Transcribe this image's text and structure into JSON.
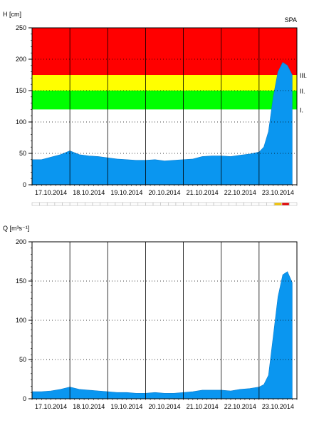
{
  "chart_data": [
    {
      "type": "area",
      "ylabel": "H [cm]",
      "station": "SPA",
      "ylim": [
        0,
        250
      ],
      "yticks": [
        0,
        50,
        100,
        150,
        200,
        250
      ],
      "grid": true,
      "x_start": "17.10.2014 00:00",
      "x_end": "24.10.2014 00:00",
      "x_tick_labels": [
        "17.10.2014",
        "18.10.2014",
        "19.10.2014",
        "20.10.2014",
        "21.10.2014",
        "22.10.2014",
        "23.10.2014"
      ],
      "fill_color": "#0a96f0",
      "bands": [
        {
          "label": "I.",
          "from": 120,
          "to": 150,
          "color": "#00ff00"
        },
        {
          "label": "II.",
          "from": 150,
          "to": 175,
          "color": "#ffff00"
        },
        {
          "label": "III.",
          "from": 175,
          "to": 250,
          "color": "#ff0000"
        }
      ],
      "status_strip": {
        "segments": 35,
        "markers": [
          {
            "segment": 32,
            "color": "#f0c000"
          },
          {
            "segment": 33,
            "color": "#e00000"
          }
        ]
      },
      "series": [
        {
          "x": [
            "17.10.2014 00:00",
            "17.10.2014 06:00",
            "17.10.2014 12:00",
            "17.10.2014 18:00",
            "18.10.2014 00:00",
            "18.10.2014 06:00",
            "18.10.2014 12:00",
            "18.10.2014 18:00",
            "19.10.2014 00:00",
            "19.10.2014 06:00",
            "19.10.2014 12:00",
            "19.10.2014 18:00",
            "20.10.2014 00:00",
            "20.10.2014 06:00",
            "20.10.2014 12:00",
            "20.10.2014 18:00",
            "21.10.2014 00:00",
            "21.10.2014 06:00",
            "21.10.2014 12:00",
            "21.10.2014 18:00",
            "22.10.2014 00:00",
            "22.10.2014 06:00",
            "22.10.2014 12:00",
            "22.10.2014 18:00",
            "23.10.2014 00:00",
            "23.10.2014 03:00",
            "23.10.2014 06:00",
            "23.10.2014 09:00",
            "23.10.2014 12:00",
            "23.10.2014 15:00",
            "23.10.2014 18:00",
            "23.10.2014 21:00"
          ],
          "values": [
            40,
            40,
            44,
            48,
            54,
            48,
            46,
            45,
            43,
            41,
            40,
            39,
            39,
            40,
            38,
            39,
            40,
            41,
            45,
            46,
            46,
            45,
            47,
            49,
            52,
            60,
            85,
            140,
            180,
            195,
            190,
            175
          ]
        }
      ]
    },
    {
      "type": "area",
      "ylabel": "Q [m³s⁻¹]",
      "ylim": [
        0,
        200
      ],
      "yticks": [
        0,
        50,
        100,
        150,
        200
      ],
      "grid": true,
      "x_start": "17.10.2014 00:00",
      "x_end": "24.10.2014 00:00",
      "x_tick_labels": [
        "17.10.2014",
        "18.10.2014",
        "19.10.2014",
        "20.10.2014",
        "21.10.2014",
        "22.10.2014",
        "23.10.2014"
      ],
      "fill_color": "#0a96f0",
      "series": [
        {
          "x": [
            "17.10.2014 00:00",
            "17.10.2014 06:00",
            "17.10.2014 12:00",
            "17.10.2014 18:00",
            "18.10.2014 00:00",
            "18.10.2014 06:00",
            "18.10.2014 12:00",
            "18.10.2014 18:00",
            "19.10.2014 00:00",
            "19.10.2014 06:00",
            "19.10.2014 12:00",
            "19.10.2014 18:00",
            "20.10.2014 00:00",
            "20.10.2014 06:00",
            "20.10.2014 12:00",
            "20.10.2014 18:00",
            "21.10.2014 00:00",
            "21.10.2014 06:00",
            "21.10.2014 12:00",
            "21.10.2014 18:00",
            "22.10.2014 00:00",
            "22.10.2014 06:00",
            "22.10.2014 12:00",
            "22.10.2014 18:00",
            "23.10.2014 00:00",
            "23.10.2014 03:00",
            "23.10.2014 06:00",
            "23.10.2014 09:00",
            "23.10.2014 12:00",
            "23.10.2014 15:00",
            "23.10.2014 18:00",
            "23.10.2014 21:00"
          ],
          "values": [
            9,
            9,
            10,
            12,
            15,
            12,
            11,
            10,
            9,
            8,
            8,
            7,
            7,
            8,
            7,
            7,
            8,
            9,
            11,
            11,
            11,
            10,
            12,
            13,
            15,
            18,
            30,
            80,
            130,
            158,
            162,
            148
          ]
        }
      ]
    }
  ]
}
